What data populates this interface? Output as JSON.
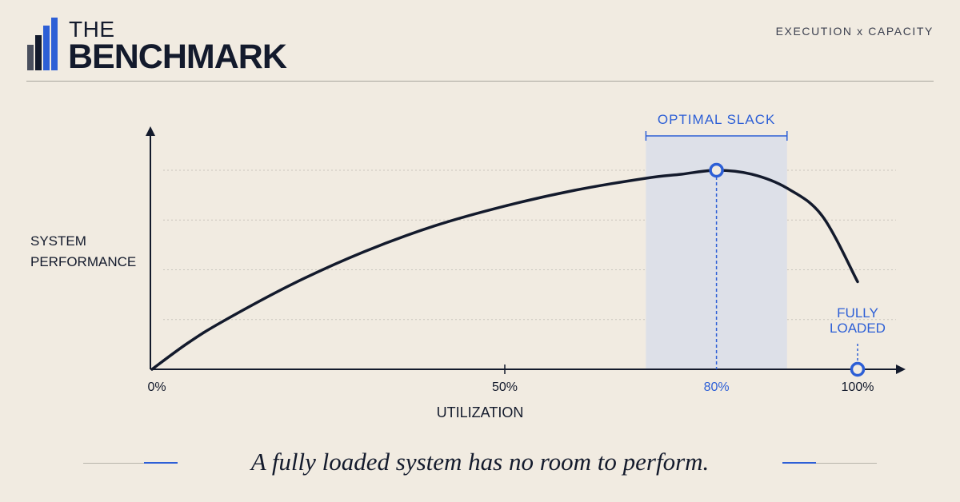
{
  "brand": {
    "the": "THE",
    "name": "BENCHMARK",
    "tagline": "EXECUTION x CAPACITY",
    "colors": {
      "dark": "#131a2c",
      "accent": "#2d5fd6",
      "muted": "#4a4f5e"
    }
  },
  "chart_data": {
    "type": "line",
    "xlabel": "UTILIZATION",
    "ylabel": [
      "SYSTEM",
      "PERFORMANCE"
    ],
    "xlim": [
      0,
      100
    ],
    "x_ticks": [
      {
        "value": 0,
        "label": "0%"
      },
      {
        "value": 50,
        "label": "50%"
      },
      {
        "value": 80,
        "label": "80%",
        "highlight": true
      },
      {
        "value": 100,
        "label": "100%"
      }
    ],
    "series": [
      {
        "x": [
          0,
          5,
          10,
          20,
          30,
          40,
          50,
          60,
          70,
          75,
          80,
          85,
          90,
          95,
          100
        ],
        "y": [
          0,
          13,
          24,
          43,
          59,
          72,
          82,
          90,
          96,
          98,
          100,
          98,
          91,
          77,
          44
        ]
      }
    ],
    "highlight_band": {
      "label": "OPTIMAL SLACK",
      "x_start": 70,
      "x_end": 90
    },
    "markers": [
      {
        "x": 80,
        "y": 100,
        "label": ""
      },
      {
        "x": 100,
        "y": 0,
        "label": [
          "FULLY",
          "LOADED"
        ]
      }
    ],
    "grid": "horizontal dotted"
  },
  "caption": "A fully loaded system has no room to perform."
}
